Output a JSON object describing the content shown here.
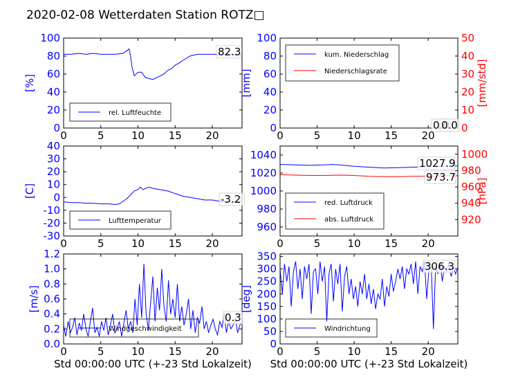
{
  "figure": {
    "title": "2020-02-08 Wetterdaten Station ROTZ□"
  },
  "colors": {
    "left_axis": "#0000ff",
    "right_axis": "#ff0000",
    "frame": "#000000"
  },
  "chart_data": [
    {
      "id": "humidity",
      "type": "line",
      "ylabel": "[%]",
      "xlabel": "",
      "xlim": [
        0,
        24
      ],
      "ylim": [
        0,
        100
      ],
      "xticks": [
        0,
        5,
        10,
        15,
        20
      ],
      "yticks": [
        0,
        20,
        40,
        60,
        80,
        100
      ],
      "last_value_label": "82.3",
      "legend": {
        "position": "lower-left",
        "entries": [
          "rel. Luftfeuchte"
        ]
      },
      "series": [
        {
          "name": "rel. Luftfeuchte",
          "color": "#0000ff",
          "x": [
            0,
            1,
            2,
            3,
            4,
            5,
            6,
            7,
            8,
            8.5,
            8.8,
            9,
            9.2,
            9.5,
            10,
            10.5,
            11,
            11.5,
            12,
            12.5,
            13,
            13.5,
            14,
            14.5,
            15,
            15.5,
            16,
            17,
            18,
            19,
            20,
            21,
            22,
            23,
            24
          ],
          "y": [
            82,
            82,
            83,
            82,
            83,
            82,
            82,
            82,
            83,
            86,
            88,
            80,
            68,
            58,
            62,
            62,
            56,
            55,
            54,
            56,
            58,
            60,
            64,
            66,
            70,
            72,
            75,
            80,
            82,
            82,
            82,
            82,
            82,
            82,
            82
          ]
        }
      ]
    },
    {
      "id": "precipitation",
      "type": "line",
      "ylabel": "[mm]",
      "ylabel_right": "[mm/std]",
      "xlabel": "",
      "xlim": [
        0,
        24
      ],
      "ylim": [
        0,
        100
      ],
      "ylim_right": [
        0,
        50
      ],
      "xticks": [
        0,
        5,
        10,
        15,
        20
      ],
      "yticks": [
        0,
        20,
        40,
        60,
        80,
        100
      ],
      "yticks_right": [
        0,
        10,
        20,
        30,
        40,
        50
      ],
      "last_value_labels": [
        "0.0",
        "0.0"
      ],
      "legend": {
        "position": "upper-left",
        "entries": [
          "kum. Niederschlag",
          "Niederschlagsrate"
        ]
      },
      "series": [
        {
          "name": "kum. Niederschlag",
          "color": "#0000ff",
          "axis": "left",
          "x": [
            0,
            24
          ],
          "y": [
            0,
            0
          ]
        },
        {
          "name": "Niederschlagsrate",
          "color": "#ff0000",
          "axis": "right",
          "x": [
            0,
            24
          ],
          "y": [
            0,
            0
          ]
        }
      ]
    },
    {
      "id": "temperature",
      "type": "line",
      "ylabel": "[C]",
      "xlabel": "",
      "xlim": [
        0,
        24
      ],
      "ylim": [
        -30,
        40
      ],
      "xticks": [
        0,
        5,
        10,
        15,
        20
      ],
      "yticks": [
        -30,
        -20,
        -10,
        0,
        10,
        20,
        30,
        40
      ],
      "last_value_label": "-3.2",
      "legend": {
        "position": "lower-left",
        "entries": [
          "Lufttemperatur"
        ]
      },
      "series": [
        {
          "name": "Lufttemperatur",
          "color": "#0000ff",
          "x": [
            0,
            1,
            2,
            3,
            4,
            5,
            6,
            7,
            7.5,
            8,
            8.5,
            9,
            9.5,
            10,
            10.3,
            10.7,
            11,
            11.5,
            12,
            13,
            14,
            15,
            16,
            17,
            18,
            19,
            20,
            21,
            22,
            23,
            24
          ],
          "y": [
            -3.5,
            -4,
            -4,
            -4.5,
            -4.5,
            -5,
            -5,
            -5.5,
            -5,
            -3,
            -1,
            2,
            5,
            6,
            8,
            6,
            7,
            8,
            7,
            6,
            5,
            3,
            1,
            0,
            -1,
            -2,
            -2,
            -3,
            -3,
            -3.2,
            -3.2
          ]
        }
      ]
    },
    {
      "id": "pressure",
      "type": "line",
      "ylabel": "",
      "ylabel_right": "[hPa]",
      "xlabel": "",
      "xlim": [
        0,
        24
      ],
      "ylim": [
        950,
        1050
      ],
      "ylim_right": [
        900,
        1010
      ],
      "xticks": [
        0,
        5,
        10,
        15,
        20
      ],
      "yticks": [
        960,
        980,
        1000,
        1020,
        1040
      ],
      "yticks_right": [
        920,
        940,
        960,
        980,
        1000
      ],
      "last_value_labels": [
        "1027.9",
        "973.7"
      ],
      "legend": {
        "position": "lower-left",
        "entries": [
          "red. Luftdruck",
          "abs. Luftdruck"
        ]
      },
      "series": [
        {
          "name": "red. Luftdruck",
          "color": "#0000ff",
          "axis": "left",
          "x": [
            0,
            2,
            4,
            6,
            7,
            8,
            10,
            12,
            14,
            16,
            18,
            20,
            22,
            24
          ],
          "y": [
            1029.5,
            1029,
            1028.5,
            1029,
            1029.5,
            1029,
            1027.5,
            1026.5,
            1025.5,
            1026,
            1026.5,
            1027,
            1027.5,
            1027.9
          ]
        },
        {
          "name": "abs. Luftdruck",
          "color": "#ff0000",
          "axis": "right",
          "x": [
            0,
            2,
            4,
            6,
            8,
            10,
            12,
            14,
            16,
            18,
            20,
            22,
            24
          ],
          "y": [
            975,
            974.5,
            974,
            974,
            974.5,
            974,
            973,
            972.5,
            972.5,
            973,
            973,
            973.5,
            973.7
          ]
        }
      ]
    },
    {
      "id": "windspeed",
      "type": "line",
      "ylabel": "[m/s]",
      "xlabel": "Std 00:00:00 UTC (+-23 Std Lokalzeit)",
      "xlim": [
        0,
        24
      ],
      "ylim": [
        0,
        1.2
      ],
      "xticks": [
        0,
        5,
        10,
        15,
        20
      ],
      "yticks": [
        0.0,
        0.2,
        0.4,
        0.6,
        0.8,
        1.0,
        1.2
      ],
      "last_value_label": "0.3",
      "legend": {
        "position": "lower-left",
        "entries": [
          "Windgeschwindigkeit"
        ]
      },
      "series": [
        {
          "name": "Windgeschwindigkeit",
          "color": "#0000ff",
          "x": [
            0,
            0.3,
            0.6,
            0.9,
            1.2,
            1.5,
            1.8,
            2.1,
            2.4,
            2.7,
            3,
            3.3,
            3.6,
            3.9,
            4.2,
            4.5,
            4.8,
            5.1,
            5.4,
            5.7,
            6,
            6.3,
            6.6,
            6.9,
            7.2,
            7.5,
            7.8,
            8.1,
            8.4,
            8.7,
            9,
            9.3,
            9.6,
            9.9,
            10.2,
            10.5,
            10.8,
            11.1,
            11.4,
            11.7,
            12,
            12.3,
            12.6,
            12.9,
            13.2,
            13.5,
            13.8,
            14.1,
            14.4,
            14.7,
            15,
            15.3,
            15.6,
            15.9,
            16.2,
            16.5,
            16.8,
            17.1,
            17.4,
            17.7,
            18,
            18.3,
            18.6,
            18.9,
            19.2,
            19.5,
            19.8,
            20.1,
            20.4,
            20.7,
            21,
            21.3,
            21.6,
            21.9,
            22.2,
            22.5,
            22.8,
            23.1,
            23.4,
            23.7,
            24
          ],
          "y": [
            0.25,
            0.1,
            0.3,
            0.15,
            0.22,
            0.35,
            0.12,
            0.28,
            0.18,
            0.4,
            0.2,
            0.1,
            0.3,
            0.48,
            0.15,
            0.22,
            0.1,
            0.3,
            0.18,
            0.35,
            0.12,
            0.25,
            0.4,
            0.15,
            0.2,
            0.3,
            0.1,
            0.28,
            0.45,
            0.2,
            0.3,
            0.15,
            0.6,
            0.25,
            0.8,
            0.35,
            1.07,
            0.4,
            0.2,
            0.55,
            0.9,
            0.3,
            0.75,
            0.45,
            1.0,
            0.5,
            0.3,
            0.85,
            0.4,
            0.6,
            0.35,
            0.8,
            0.3,
            0.5,
            0.25,
            0.4,
            0.6,
            0.2,
            0.45,
            0.15,
            0.35,
            0.28,
            0.5,
            0.2,
            0.3,
            0.15,
            0.25,
            0.33,
            0.2,
            0.12,
            0.3,
            0.22,
            0.4,
            0.15,
            0.3,
            0.2,
            0.25,
            0.35,
            0.15,
            0.25,
            0.3
          ]
        }
      ]
    },
    {
      "id": "winddirection",
      "type": "line",
      "ylabel": "[deg]",
      "xlabel": "Std 00:00:00 UTC (+-23 Std Lokalzeit)",
      "xlim": [
        0,
        24
      ],
      "ylim": [
        0,
        360
      ],
      "xticks": [
        0,
        5,
        10,
        15,
        20
      ],
      "yticks": [
        0,
        50,
        100,
        150,
        200,
        250,
        300,
        350
      ],
      "last_value_label": "306.3",
      "legend": {
        "position": "lower-left",
        "entries": [
          "Windrichtung"
        ]
      },
      "series": [
        {
          "name": "Windrichtung",
          "color": "#0000ff",
          "x": [
            0,
            0.3,
            0.6,
            0.9,
            1.2,
            1.5,
            1.8,
            2.1,
            2.4,
            2.7,
            3,
            3.3,
            3.6,
            3.9,
            4.2,
            4.5,
            4.8,
            5.1,
            5.4,
            5.7,
            6,
            6.3,
            6.6,
            6.9,
            7.2,
            7.5,
            7.8,
            8.1,
            8.4,
            8.7,
            9,
            9.3,
            9.6,
            9.9,
            10.2,
            10.5,
            10.8,
            11.1,
            11.4,
            11.7,
            12,
            12.3,
            12.6,
            12.9,
            13.2,
            13.5,
            13.8,
            14.1,
            14.4,
            14.7,
            15,
            15.3,
            15.6,
            15.9,
            16.2,
            16.5,
            16.8,
            17.1,
            17.4,
            17.7,
            18,
            18.3,
            18.6,
            18.9,
            19.2,
            19.5,
            19.8,
            20.1,
            20.4,
            20.7,
            21,
            21.3,
            21.6,
            21.9,
            22.2,
            22.5,
            22.8,
            23.1,
            23.4,
            23.7,
            24
          ],
          "y": [
            300,
            200,
            320,
            250,
            310,
            150,
            290,
            330,
            220,
            300,
            180,
            310,
            260,
            320,
            120,
            290,
            300,
            200,
            330,
            250,
            310,
            90,
            280,
            320,
            170,
            300,
            240,
            320,
            130,
            270,
            310,
            200,
            260,
            180,
            230,
            150,
            250,
            200,
            280,
            180,
            240,
            160,
            220,
            140,
            200,
            180,
            260,
            150,
            230,
            190,
            280,
            210,
            250,
            300,
            260,
            310,
            220,
            300,
            280,
            320,
            240,
            330,
            200,
            310,
            290,
            330,
            180,
            300,
            320,
            60,
            310,
            280,
            330,
            250,
            310,
            290,
            320,
            270,
            310,
            280,
            306
          ]
        }
      ]
    }
  ]
}
